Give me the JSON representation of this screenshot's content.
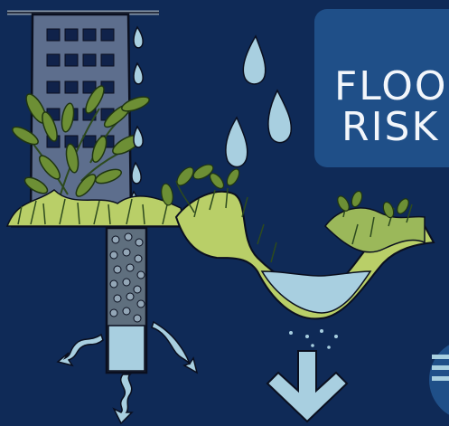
{
  "badge": {
    "line1": "FLOOD",
    "line2": "RISK"
  },
  "colors": {
    "background": "#0f2a57",
    "badge": "#1f4f88",
    "building": "#5d6e8d",
    "window": "#10224a",
    "grass": "#b9cf68",
    "leaf": "#6d8f35",
    "water": "#a8cfe0",
    "soil": "#93a6b6",
    "ink": "#0a0f1f"
  },
  "icons": [
    "building-icon",
    "raindrop-icon",
    "down-arrow-icon",
    "wavy-arrow-icon",
    "plant-icon"
  ]
}
